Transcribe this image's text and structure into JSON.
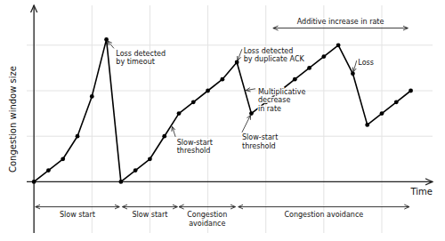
{
  "chart_data": {
    "type": "line",
    "x": [
      0,
      1,
      2,
      3,
      4,
      5,
      6,
      7,
      8,
      9,
      10,
      11,
      12,
      13,
      14,
      15,
      16,
      17,
      18,
      19,
      20,
      21,
      22,
      23,
      24,
      25,
      26
    ],
    "series": [
      {
        "values": [
          0,
          1,
          2,
          4,
          7.5,
          12.5,
          0,
          1,
          2,
          4,
          6,
          7,
          8,
          9,
          10.5,
          6,
          7,
          8,
          9,
          10,
          11,
          12,
          9.5,
          5,
          6,
          7,
          8
        ],
        "color": "#000000",
        "marker": "circle"
      }
    ],
    "xlabel": "Time",
    "ylabel": "Congestion window size",
    "xlim": [
      -0.5,
      27.5
    ],
    "ylim": [
      -4.5,
      15.5
    ],
    "xticks": [
      0,
      4,
      8,
      12,
      16,
      20,
      24
    ],
    "yticks": [
      0,
      4,
      8,
      12
    ],
    "grid": true,
    "tick_labels": false,
    "annotations": [
      {
        "text": "Loss detected\nby timeout",
        "xy": [
          5,
          12.5
        ],
        "xytext": [
          5.6,
          11.6
        ]
      },
      {
        "text": "Slow-start\nthreshold",
        "xy": [
          9.5,
          5.0
        ],
        "xytext": [
          9.8,
          3.8
        ]
      },
      {
        "text": "Slow-start\nthreshold",
        "xy": [
          15,
          6.0
        ],
        "xytext": [
          14.3,
          4.2
        ]
      },
      {
        "text": "Loss detected\nby duplicate ACK",
        "xy": [
          14,
          10.5
        ],
        "xytext": [
          14.4,
          11.8
        ]
      },
      {
        "text": "Multiplicative\ndecrease\nin rate",
        "xy": [
          14.5,
          8.0
        ],
        "xytext": [
          15.4,
          8.2
        ]
      },
      {
        "text": "Loss",
        "xy": [
          22,
          9.5
        ],
        "xytext": [
          22.3,
          10.8
        ]
      }
    ],
    "spans": [
      {
        "x1": 16.5,
        "x2": 25.8,
        "y": 13.5,
        "label": "Additive increase in rate"
      },
      {
        "x1": 0.1,
        "x2": 5.9,
        "y": -2.2,
        "label": "Slow start"
      },
      {
        "x1": 6.1,
        "x2": 9.9,
        "y": -2.2,
        "label": "Slow start"
      },
      {
        "x1": 10.0,
        "x2": 13.9,
        "y": -2.2,
        "label": "Congestion\navoidance"
      },
      {
        "x1": 14.1,
        "x2": 25.9,
        "y": -2.2,
        "label": "Congestion avoidance"
      }
    ]
  }
}
